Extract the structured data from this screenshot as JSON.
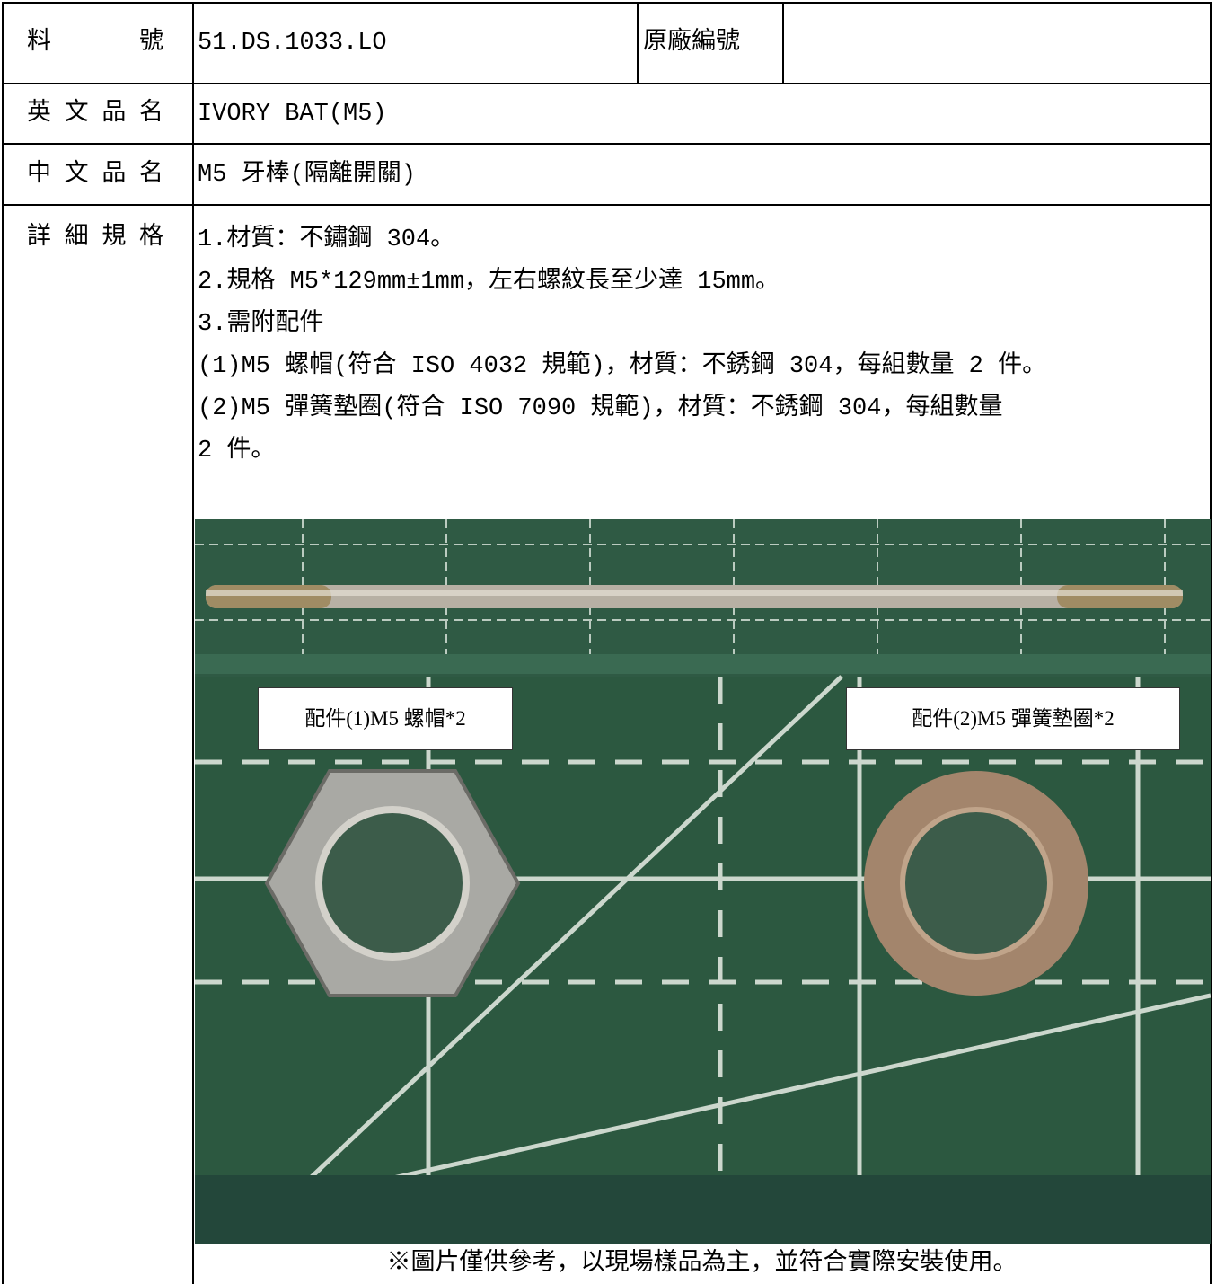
{
  "table": {
    "rows": [
      {
        "label": "料　號",
        "value": "51.DS.1033.LO",
        "label2": "原廠編號"
      },
      {
        "label": "英文品名",
        "value": "IVORY BAT(M5)"
      },
      {
        "label": "中文品名",
        "value": "M5 牙棒(隔離開關)"
      },
      {
        "label": "詳細規格",
        "lines": [
          "1.材質：不鏽鋼 304。",
          "2.規格 M5*129mm±1mm，左右螺紋長至少達 15mm。",
          "3.需附配件",
          "(1)M5 螺帽(符合 ISO 4032 規範)，材質：不銹鋼 304，每組數量 2 件。",
          "(2)M5 彈簧墊圈(符合 ISO 7090 規範)，材質：不銹鋼 304，每組數量",
          "2 件。"
        ]
      }
    ],
    "photo": {
      "labels": [
        "配件(1)M5 螺帽*2",
        "配件(2)M5 彈簧墊圈*2"
      ],
      "caption": "※圖片僅供參考，以現場樣品為主，並符合實際安裝使用。"
    }
  }
}
